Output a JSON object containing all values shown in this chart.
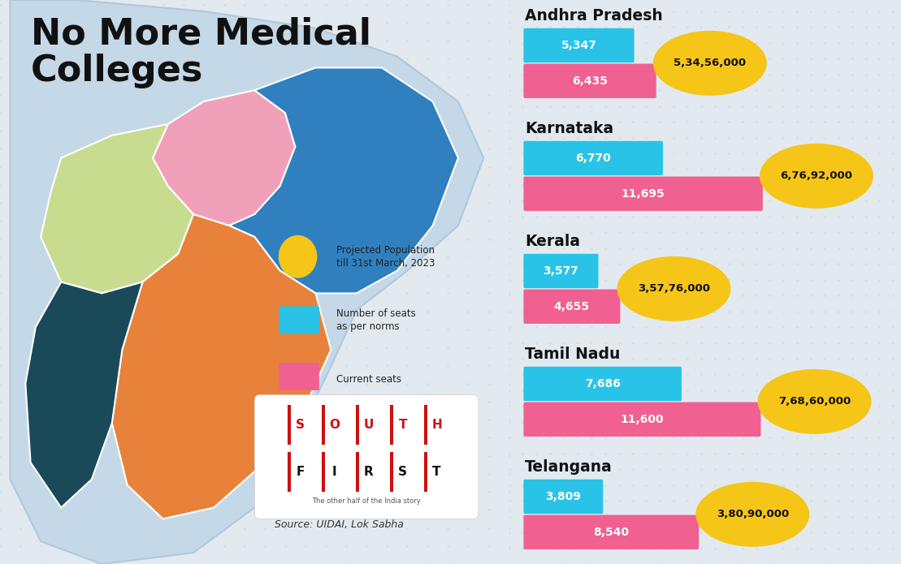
{
  "title_line1": "No More Medical",
  "title_line2": "Colleges",
  "states": [
    "Andhra Pradesh",
    "Karnataka",
    "Kerala",
    "Tamil Nadu",
    "Telangana"
  ],
  "seats_norms": [
    5347,
    6770,
    3577,
    7686,
    3809
  ],
  "seats_current": [
    6435,
    11695,
    4655,
    11600,
    8540
  ],
  "population": [
    "5,34,56,000",
    "6,76,92,000",
    "3,57,76,000",
    "7,68,60,000",
    "3,80,90,000"
  ],
  "seats_norms_labels": [
    "5,347",
    "6,770",
    "3,577",
    "7,686",
    "3,809"
  ],
  "seats_current_labels": [
    "6,435",
    "11,695",
    "4,655",
    "11,600",
    "8,540"
  ],
  "bar_color_blue": "#29C3E8",
  "bar_color_pink": "#F06090",
  "population_circle_color": "#F5C518",
  "background_color": "#E2EAF0",
  "dot_color": "#D0DCE8",
  "title_color": "#111111",
  "legend_yellow_label": "Projected Population\ntill 31st March, 2023",
  "legend_blue_label": "Number of seats\nas per norms",
  "legend_pink_label": "Current seats",
  "source_text": "Source: UIDAI, Lok Sabha",
  "max_bar_value": 12000,
  "map_bg_color": "#C5D8E8",
  "map_border_color": "#B0C8DC",
  "telangana_color": "#F0A0B8",
  "andhra_color": "#3080C0",
  "karnataka_color": "#C8DC90",
  "tamilnadu_color": "#E8823A",
  "kerala_color": "#1A4A5A"
}
